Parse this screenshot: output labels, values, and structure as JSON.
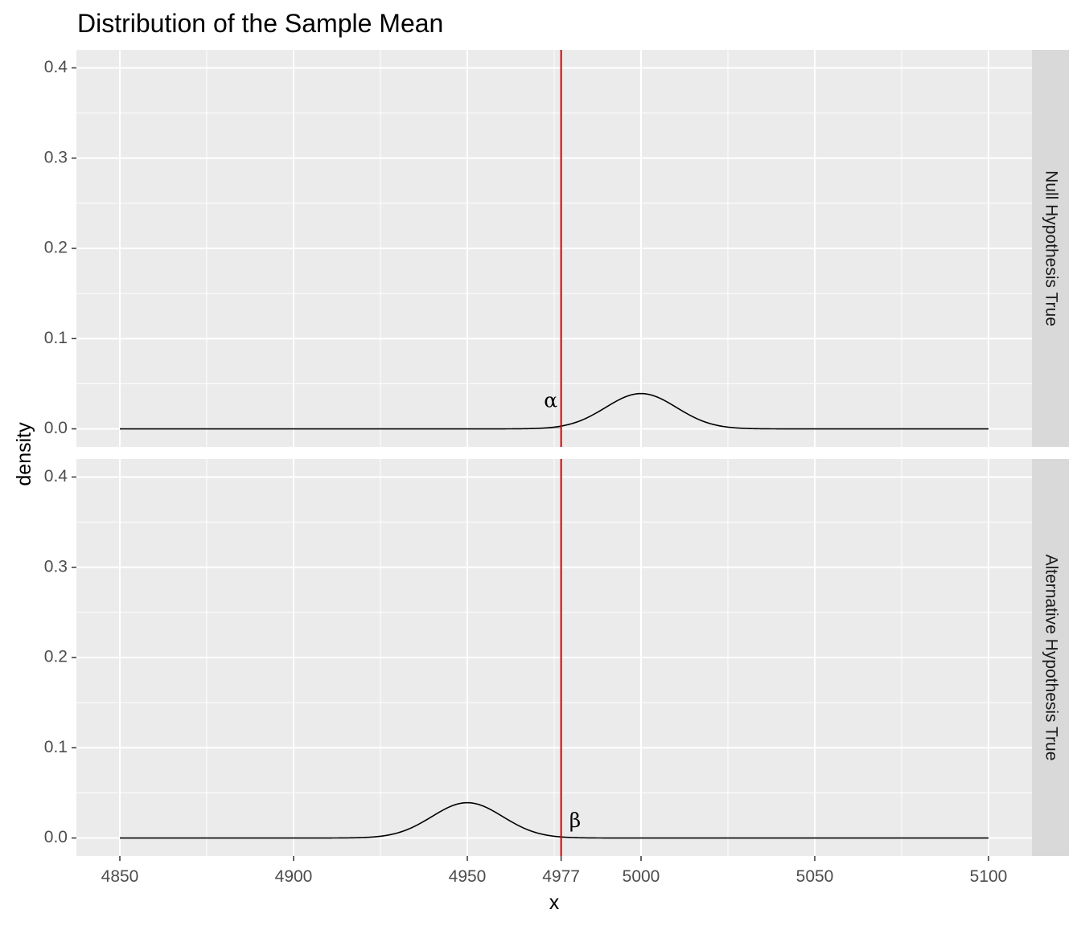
{
  "chart_data": {
    "type": "area",
    "title": "Distribution of the Sample Mean",
    "xlabel": "x",
    "ylabel": "density",
    "xlim": [
      4850,
      5100
    ],
    "ylim": [
      0,
      0.4
    ],
    "x_ticks": [
      4850,
      4900,
      4950,
      4977,
      5000,
      5050,
      5100
    ],
    "x_tick_labels": [
      "4850",
      "4900",
      "4950",
      "4977",
      "5000",
      "5050",
      "5100"
    ],
    "y_ticks": [
      0.0,
      0.1,
      0.2,
      0.3,
      0.4
    ],
    "y_tick_labels": [
      "0.0",
      "0.1",
      "0.2",
      "0.3",
      "0.4"
    ],
    "grid": true,
    "critical_value": 4977,
    "critical_line_color": "#cc0000",
    "shade_color": "#bebebe",
    "line_color": "#000000",
    "panel_background": "#ebebeb",
    "strip_background": "#d9d9d9",
    "panels": [
      {
        "strip_label": "Null Hypothesis True",
        "mean": 5000,
        "sd": 10.2,
        "shade_region": "left",
        "annotation": "α",
        "annotation_x": 4974,
        "annotation_y": 0.03
      },
      {
        "strip_label": "Alternative Hypothesis True",
        "mean": 4950,
        "sd": 10.2,
        "shade_region": "right",
        "annotation": "β",
        "annotation_x": 4981,
        "annotation_y": 0.018
      }
    ]
  }
}
